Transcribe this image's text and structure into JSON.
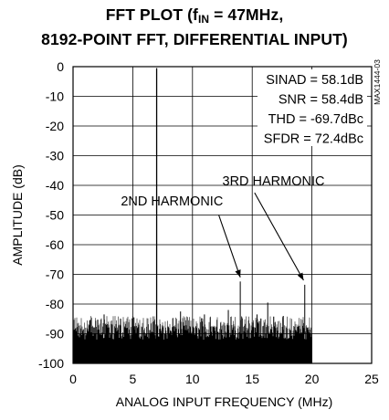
{
  "title": {
    "line1_prefix": "FFT PLOT (f",
    "line1_sub": "IN",
    "line1_suffix": " = 47MHz,",
    "line2": "8192-POINT FFT, DIFFERENTIAL INPUT)"
  },
  "figure_id": "MAX1444-03",
  "chart_data": {
    "type": "bar",
    "xlabel": "ANALOG INPUT FREQUENCY (MHz)",
    "ylabel": "AMPLITUDE (dB)",
    "xlim": [
      0,
      25
    ],
    "ylim": [
      -100,
      0
    ],
    "x_ticks": [
      0,
      5,
      10,
      15,
      20,
      25
    ],
    "y_ticks": [
      0,
      -10,
      -20,
      -30,
      -40,
      -50,
      -60,
      -70,
      -80,
      -90,
      -100
    ],
    "x_tick_labels": [
      "0",
      "5",
      "10",
      "15",
      "20",
      "25"
    ],
    "y_tick_labels": [
      "0",
      "-10",
      "-20",
      "-30",
      "-40",
      "-50",
      "-60",
      "-70",
      "-80",
      "-90",
      "-100"
    ],
    "grid": true,
    "fundamental": {
      "freq_mhz": 7.0,
      "amplitude_db": -0.5
    },
    "noise_floor": {
      "x_range_mhz": [
        0,
        20.0
      ],
      "amplitude_db_range": [
        -100,
        -84
      ]
    },
    "spurs": [
      {
        "freq_mhz": 2.6,
        "amplitude_db": -83.5
      },
      {
        "freq_mhz": 5.1,
        "amplitude_db": -84.5
      },
      {
        "freq_mhz": 9.0,
        "amplitude_db": -82.5
      },
      {
        "freq_mhz": 11.0,
        "amplitude_db": -83.5
      },
      {
        "freq_mhz": 13.0,
        "amplitude_db": -82.0
      },
      {
        "freq_mhz": 14.0,
        "amplitude_db": -72.4
      },
      {
        "freq_mhz": 15.4,
        "amplitude_db": -83.5
      },
      {
        "freq_mhz": 16.3,
        "amplitude_db": -79.5
      },
      {
        "freq_mhz": 17.6,
        "amplitude_db": -84.0
      },
      {
        "freq_mhz": 19.4,
        "amplitude_db": -73.5
      }
    ],
    "annotations": [
      {
        "label": "2ND HARMONIC",
        "text_x_mhz": 4.0,
        "text_y_db": -46.8,
        "target_x_mhz": 14.0,
        "target_y_db": -71.0,
        "line_start_x_mhz": 12.2,
        "line_start_y_db": -50.0
      },
      {
        "label": "3RD HARMONIC",
        "text_x_mhz": 12.5,
        "text_y_db": -40.0,
        "target_x_mhz": 19.3,
        "target_y_db": -72.0,
        "line_start_x_mhz": 15.2,
        "line_start_y_db": -42.5
      }
    ],
    "stats": [
      {
        "label": "SINAD = 58.1dB"
      },
      {
        "label": "SNR = 58.4dB"
      },
      {
        "label": "THD = -69.7dBc"
      },
      {
        "label": "SFDR = 72.4dBc"
      }
    ]
  }
}
